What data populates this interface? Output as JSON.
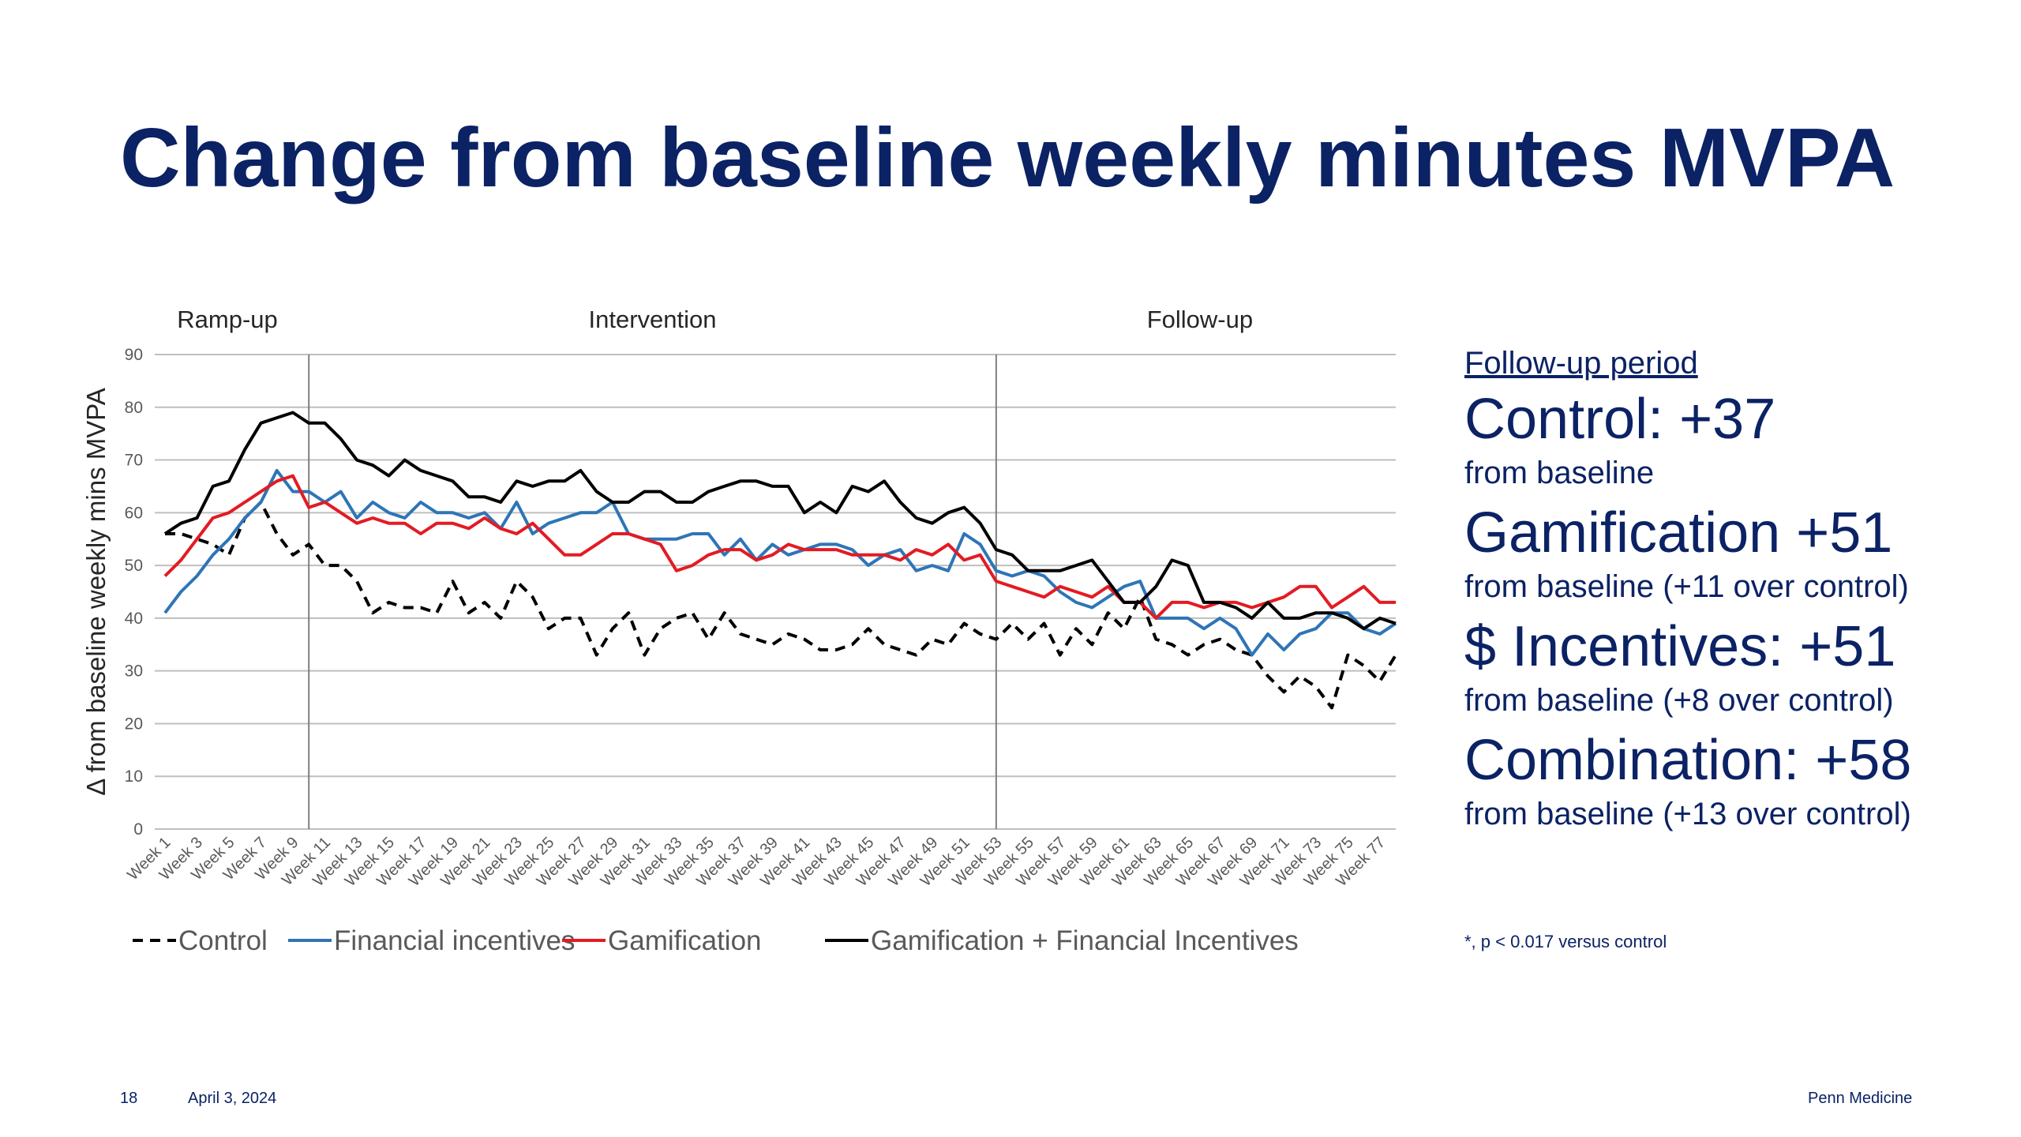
{
  "title": "Change from baseline weekly minutes MVPA",
  "side_panel": {
    "heading": "Follow-up period",
    "stats": [
      {
        "headline": "Control: +37",
        "detail": "from baseline"
      },
      {
        "headline": "Gamification +51",
        "detail": "from baseline (+11 over control)"
      },
      {
        "headline": "$ Incentives: +51",
        "detail": "from baseline (+8 over control)"
      },
      {
        "headline": "Combination: +58",
        "detail": "from baseline (+13 over control)"
      }
    ]
  },
  "footnote": "*, p < 0.017 versus control",
  "footer": {
    "page_number": "18",
    "date": "April 3, 2024",
    "organization": "Penn Medicine"
  },
  "chart_data": {
    "type": "line",
    "ylabel": "Δ from baseline weekly mins MVPA",
    "xlabel": "",
    "ylim": [
      0,
      90
    ],
    "yticks": [
      0,
      10,
      20,
      30,
      40,
      50,
      60,
      70,
      80,
      90
    ],
    "grid": true,
    "legend_position": "bottom",
    "x_tick_labels": [
      "Week 1",
      "Week 3",
      "Week 5",
      "Week 7",
      "Week 9",
      "Week 11",
      "Week 13",
      "Week 15",
      "Week 17",
      "Week 19",
      "Week 21",
      "Week 23",
      "Week 25",
      "Week 27",
      "Week 29",
      "Week 31",
      "Week 33",
      "Week 35",
      "Week 37",
      "Week 39",
      "Week 41",
      "Week 43",
      "Week 45",
      "Week 47",
      "Week 49",
      "Week 51",
      "Week 53",
      "Week 55",
      "Week 57",
      "Week 59",
      "Week 61",
      "Week 63",
      "Week 65",
      "Week 67",
      "Week 69",
      "Week 71",
      "Week 73",
      "Week 75",
      "Week 77"
    ],
    "phases": [
      {
        "label": "Ramp-up",
        "start_week": 1,
        "end_week": 10
      },
      {
        "label": "Intervention",
        "start_week": 10,
        "end_week": 53
      },
      {
        "label": "Follow-up",
        "start_week": 53,
        "end_week": 78
      }
    ],
    "phase_boundaries": [
      10,
      53
    ],
    "series": [
      {
        "name": "Control",
        "color": "#000000",
        "dash": true,
        "values": [
          56,
          56,
          55,
          54,
          52,
          59,
          62,
          56,
          52,
          54,
          50,
          50,
          47,
          41,
          43,
          42,
          42,
          41,
          47,
          41,
          43,
          40,
          47,
          44,
          38,
          40,
          40,
          33,
          38,
          41,
          33,
          38,
          40,
          41,
          36,
          41,
          37,
          36,
          35,
          37,
          36,
          34,
          34,
          35,
          38,
          35,
          34,
          33,
          36,
          35,
          39,
          37,
          36,
          39,
          36,
          39,
          33,
          38,
          35,
          41,
          38,
          44,
          36,
          35,
          33,
          35,
          36,
          34,
          33,
          29,
          26,
          29,
          27,
          23,
          33,
          31,
          28,
          33
        ]
      },
      {
        "name": "Financial incentives",
        "color": "#2e75b6",
        "dash": false,
        "values": [
          41,
          45,
          48,
          52,
          55,
          59,
          62,
          68,
          64,
          64,
          62,
          64,
          59,
          62,
          60,
          59,
          62,
          60,
          60,
          59,
          60,
          57,
          62,
          56,
          58,
          59,
          60,
          60,
          62,
          56,
          55,
          55,
          55,
          56,
          56,
          52,
          55,
          51,
          54,
          52,
          53,
          54,
          54,
          53,
          50,
          52,
          53,
          49,
          50,
          49,
          56,
          54,
          49,
          48,
          49,
          48,
          45,
          43,
          42,
          44,
          46,
          47,
          40,
          40,
          40,
          38,
          40,
          38,
          33,
          37,
          34,
          37,
          38,
          41,
          41,
          38,
          37,
          39
        ]
      },
      {
        "name": "Gamification",
        "color": "#e31b23",
        "dash": false,
        "values": [
          48,
          51,
          55,
          59,
          60,
          62,
          64,
          66,
          67,
          61,
          62,
          60,
          58,
          59,
          58,
          58,
          56,
          58,
          58,
          57,
          59,
          57,
          56,
          58,
          55,
          52,
          52,
          54,
          56,
          56,
          55,
          54,
          49,
          50,
          52,
          53,
          53,
          51,
          52,
          54,
          53,
          53,
          53,
          52,
          52,
          52,
          51,
          53,
          52,
          54,
          51,
          52,
          47,
          46,
          45,
          44,
          46,
          45,
          44,
          46,
          43,
          43,
          40,
          43,
          43,
          42,
          43,
          43,
          42,
          43,
          44,
          46,
          46,
          42,
          44,
          46,
          43,
          43
        ]
      },
      {
        "name": "Gamification + Financial Incentives",
        "color": "#000000",
        "dash": false,
        "values": [
          56,
          58,
          59,
          65,
          66,
          72,
          77,
          78,
          79,
          77,
          77,
          74,
          70,
          69,
          67,
          70,
          68,
          67,
          66,
          63,
          63,
          62,
          66,
          65,
          66,
          66,
          68,
          64,
          62,
          62,
          64,
          64,
          62,
          62,
          64,
          65,
          66,
          66,
          65,
          65,
          60,
          62,
          60,
          65,
          64,
          66,
          62,
          59,
          58,
          60,
          61,
          58,
          53,
          52,
          49,
          49,
          49,
          50,
          51,
          47,
          43,
          43,
          46,
          51,
          50,
          43,
          43,
          42,
          40,
          43,
          40,
          40,
          41,
          41,
          40,
          38,
          40,
          39
        ]
      }
    ]
  }
}
